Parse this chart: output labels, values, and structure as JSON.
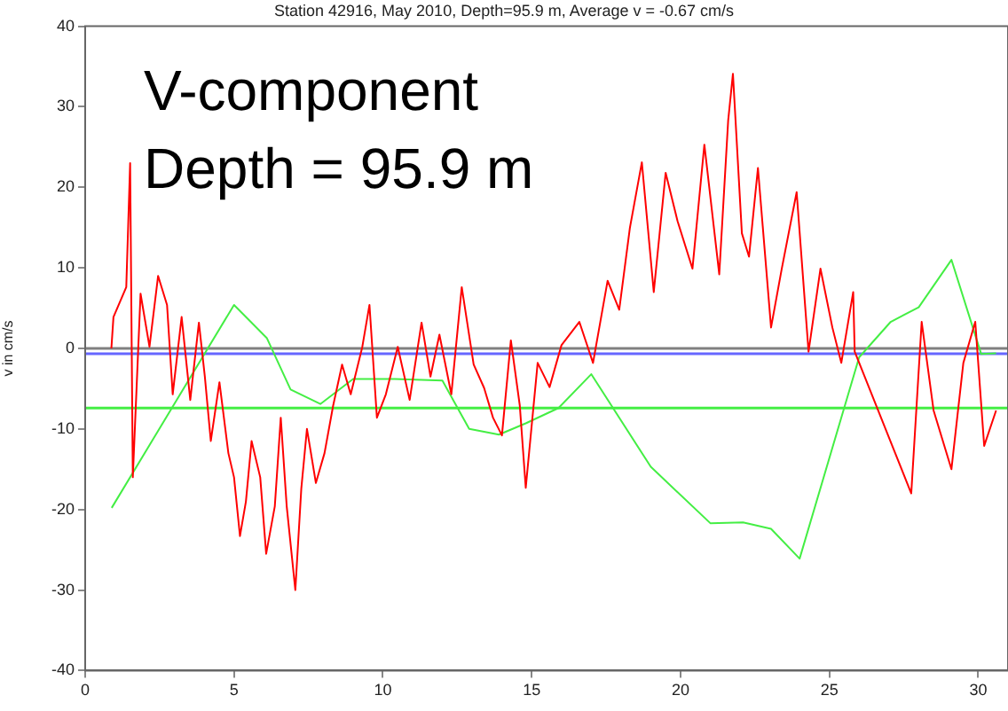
{
  "chart_data": {
    "type": "line",
    "title": "Station 42916, May 2010, Depth=95.9 m, Average v = -0.67 cm/s",
    "ylabel": "v in cm/s",
    "annotations": [
      "V-component",
      "Depth = 95.9 m"
    ],
    "xlim": [
      0,
      31
    ],
    "xticks": [
      0,
      5,
      10,
      15,
      20,
      25,
      30
    ],
    "ylim": [
      -40,
      40
    ],
    "yticks": [
      -40,
      -30,
      -20,
      -10,
      0,
      10,
      20,
      30,
      40
    ],
    "grid": false,
    "legend": false,
    "marker": "none",
    "line_style": "solid",
    "ref_lines": [
      {
        "axis": "y",
        "value": 0,
        "color": "#808080"
      },
      {
        "axis": "y",
        "value": -0.67,
        "color": "#6666ff"
      },
      {
        "axis": "y",
        "value": -7.4,
        "color": "#44ee44"
      }
    ],
    "series": [
      {
        "color": "#ff0000",
        "x": [
          0.88,
          0.95,
          1.38,
          1.51,
          1.6,
          1.86,
          2.16,
          2.45,
          2.75,
          2.94,
          3.24,
          3.53,
          3.82,
          4.02,
          4.22,
          4.51,
          4.81,
          5.0,
          5.2,
          5.4,
          5.59,
          5.88,
          6.08,
          6.37,
          6.57,
          6.77,
          7.06,
          7.26,
          7.45,
          7.75,
          8.04,
          8.33,
          8.63,
          8.92,
          9.31,
          9.55,
          9.8,
          10.1,
          10.5,
          10.9,
          11.3,
          11.6,
          11.9,
          12.3,
          12.65,
          13.05,
          13.4,
          13.7,
          14.0,
          14.3,
          14.6,
          14.8,
          15.2,
          15.6,
          16.0,
          16.6,
          17.06,
          17.55,
          17.94,
          18.3,
          18.7,
          19.1,
          19.5,
          19.9,
          20.4,
          20.8,
          21.3,
          21.6,
          21.76,
          22.06,
          22.3,
          22.6,
          23.04,
          23.4,
          23.9,
          24.3,
          24.7,
          25.1,
          25.4,
          25.8,
          25.85,
          27.75,
          28.1,
          28.5,
          29.1,
          29.5,
          29.9,
          30.2,
          30.6
        ],
        "values": [
          0,
          3.9,
          7.6,
          23,
          -16,
          6.8,
          0.2,
          9,
          5.4,
          -5.7,
          3.9,
          -6.4,
          3.2,
          -3.5,
          -11.5,
          -4.2,
          -13,
          -16,
          -23.3,
          -19,
          -11.5,
          -16,
          -25.5,
          -19.6,
          -8.6,
          -19.6,
          -30,
          -17.4,
          -10,
          -16.7,
          -13,
          -7.1,
          -2,
          -5.7,
          0.2,
          5.4,
          -8.6,
          -5.7,
          0.2,
          -6.4,
          3.2,
          -3.5,
          1.7,
          -5.7,
          7.6,
          -2,
          -4.9,
          -8.6,
          -10.8,
          1,
          -7.1,
          -17.3,
          -1.8,
          -4.8,
          0.4,
          3.3,
          -1.8,
          8.4,
          4.8,
          15,
          23.1,
          7,
          21.8,
          15.8,
          9.9,
          25.3,
          9.2,
          28.3,
          34.1,
          14.3,
          11.4,
          22.4,
          2.6,
          9.9,
          19.4,
          -0.4,
          9.9,
          2.6,
          -1.8,
          7,
          -0.4,
          -18,
          3.3,
          -7.7,
          -15,
          -1.8,
          3.3,
          -12.1,
          -7.7
        ]
      },
      {
        "color": "#44ee44",
        "x": [
          0.89,
          5.0,
          6.1,
          6.9,
          7.9,
          9.0,
          10.4,
          12.0,
          12.9,
          13.9,
          14.8,
          15.9,
          17.0,
          19.0,
          21.0,
          22.1,
          23.04,
          24.0,
          26.0,
          27.06,
          28.0,
          29.1,
          30.1,
          30.6
        ],
        "values": [
          -19.8,
          5.4,
          1.3,
          -5.1,
          -6.9,
          -3.8,
          -3.8,
          -4,
          -10,
          -10.7,
          -9.3,
          -7.4,
          -3.2,
          -14.7,
          -21.7,
          -21.6,
          -22.4,
          -26.1,
          -1.1,
          3.3,
          5.1,
          11,
          -0.7,
          -0.6
        ]
      }
    ]
  }
}
